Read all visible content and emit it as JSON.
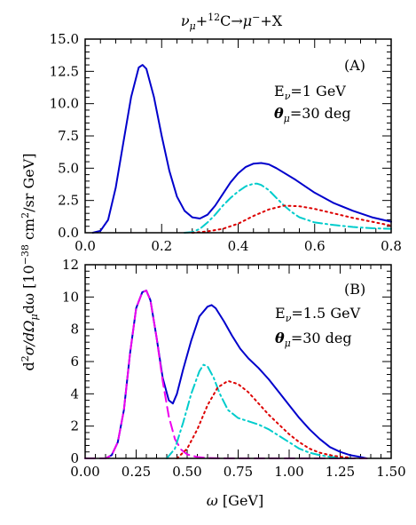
{
  "figure": {
    "title": "ν_μ + ¹²C → μ⁻ + X",
    "title_parts": {
      "nu": "ν",
      "mu_sub": "μ",
      "plus": "+",
      "mass": "12",
      "element": "C→",
      "mu": "μ",
      "minus": "−",
      "rest": "+X"
    },
    "ylabel": "d²σ/dΩ_μdω [10⁻³⁸ cm²/sr GeV]",
    "xlabel": "ω [GeV]",
    "ylabel_parts": {
      "d1": "d",
      "sup2": "2",
      "sigma": "σ/dΩ",
      "mu": "μ",
      "domega": "dω  [10",
      "exp": "−38",
      "unit": " cm",
      "sup2b": "2",
      "rest": "/sr GeV]"
    },
    "xlabel_parts": {
      "omega": "ω",
      "unit": " [GeV]"
    }
  },
  "chart_data": [
    {
      "type": "line",
      "panel_label": "(A)",
      "annotation": {
        "e_label": "E",
        "e_sub": "ν",
        "e_value": "=1 GeV",
        "theta_label": "θ",
        "theta_sub": "μ",
        "theta_value": "=30 deg"
      },
      "xlim": [
        0,
        0.8
      ],
      "ylim": [
        0,
        15
      ],
      "xticks": [
        0.0,
        0.2,
        0.4,
        0.6,
        0.8
      ],
      "xtick_labels": [
        "0.0",
        "0.2",
        "0.4",
        "0.6",
        "0.8"
      ],
      "yticks": [
        0.0,
        2.5,
        5.0,
        7.5,
        10.0,
        12.5,
        15.0
      ],
      "ytick_labels": [
        "0.0",
        "2.5",
        "5.0",
        "7.5",
        "10.0",
        "12.5",
        "15.0"
      ],
      "series": [
        {
          "style": "solid",
          "color": "#0000cc",
          "x": [
            0.02,
            0.04,
            0.06,
            0.08,
            0.1,
            0.12,
            0.14,
            0.15,
            0.16,
            0.18,
            0.2,
            0.22,
            0.24,
            0.26,
            0.28,
            0.3,
            0.32,
            0.34,
            0.36,
            0.38,
            0.4,
            0.42,
            0.44,
            0.46,
            0.48,
            0.5,
            0.55,
            0.6,
            0.65,
            0.7,
            0.75,
            0.8
          ],
          "y": [
            0.0,
            0.15,
            1.0,
            3.5,
            7.0,
            10.5,
            12.8,
            13.0,
            12.7,
            10.5,
            7.5,
            4.8,
            2.8,
            1.7,
            1.2,
            1.1,
            1.4,
            2.1,
            3.0,
            3.9,
            4.6,
            5.1,
            5.35,
            5.4,
            5.3,
            5.0,
            4.1,
            3.1,
            2.3,
            1.7,
            1.2,
            0.85
          ]
        },
        {
          "style": "dashdot",
          "color": "#00cccc",
          "x": [
            0.26,
            0.28,
            0.3,
            0.32,
            0.34,
            0.36,
            0.38,
            0.4,
            0.42,
            0.44,
            0.45,
            0.46,
            0.48,
            0.5,
            0.52,
            0.54,
            0.56,
            0.6,
            0.65,
            0.7,
            0.75,
            0.8
          ],
          "y": [
            0.0,
            0.05,
            0.3,
            0.8,
            1.4,
            2.1,
            2.7,
            3.2,
            3.6,
            3.8,
            3.8,
            3.7,
            3.3,
            2.7,
            2.1,
            1.6,
            1.2,
            0.8,
            0.6,
            0.45,
            0.35,
            0.3
          ]
        },
        {
          "style": "dotted",
          "color": "#dd0000",
          "x": [
            0.28,
            0.32,
            0.36,
            0.4,
            0.44,
            0.48,
            0.52,
            0.56,
            0.6,
            0.65,
            0.7,
            0.75,
            0.8
          ],
          "y": [
            0.0,
            0.1,
            0.3,
            0.7,
            1.3,
            1.8,
            2.1,
            2.05,
            1.85,
            1.5,
            1.15,
            0.85,
            0.55
          ]
        }
      ]
    },
    {
      "type": "line",
      "panel_label": "(B)",
      "annotation": {
        "e_label": "E",
        "e_sub": "ν",
        "e_value": "=1.5 GeV",
        "theta_label": "θ",
        "theta_sub": "μ",
        "theta_value": "=30 deg"
      },
      "xlim": [
        0,
        1.5
      ],
      "ylim": [
        0,
        12
      ],
      "xticks": [
        0.0,
        0.25,
        0.5,
        0.75,
        1.0,
        1.25,
        1.5
      ],
      "xtick_labels": [
        "0.00",
        "0.25",
        "0.50",
        "0.75",
        "1.00",
        "1.25",
        "1.50"
      ],
      "yticks": [
        0,
        2,
        4,
        6,
        8,
        10,
        12
      ],
      "ytick_labels": [
        "0",
        "2",
        "4",
        "6",
        "8",
        "10",
        "12"
      ],
      "series": [
        {
          "style": "solid",
          "color": "#0000cc",
          "x": [
            0.1,
            0.13,
            0.16,
            0.19,
            0.22,
            0.25,
            0.28,
            0.3,
            0.32,
            0.35,
            0.38,
            0.41,
            0.43,
            0.45,
            0.48,
            0.52,
            0.56,
            0.6,
            0.62,
            0.64,
            0.68,
            0.72,
            0.76,
            0.8,
            0.85,
            0.9,
            0.95,
            1.0,
            1.05,
            1.1,
            1.15,
            1.2,
            1.25,
            1.3,
            1.35,
            1.38
          ],
          "y": [
            0.0,
            0.2,
            1.0,
            3.0,
            6.5,
            9.3,
            10.3,
            10.4,
            9.8,
            7.5,
            5.0,
            3.6,
            3.4,
            4.0,
            5.5,
            7.3,
            8.8,
            9.4,
            9.5,
            9.3,
            8.5,
            7.6,
            6.8,
            6.2,
            5.6,
            4.9,
            4.1,
            3.3,
            2.5,
            1.8,
            1.2,
            0.7,
            0.4,
            0.2,
            0.08,
            0.0
          ]
        },
        {
          "style": "dashed",
          "color": "#ee00ee",
          "x": [
            0.0,
            0.05,
            0.1,
            0.13,
            0.16,
            0.19,
            0.22,
            0.25,
            0.28,
            0.3,
            0.32,
            0.35,
            0.38,
            0.41,
            0.44,
            0.47,
            0.5,
            0.55,
            0.6,
            0.7,
            0.8,
            1.0,
            1.2,
            1.38
          ],
          "y": [
            0.0,
            0.0,
            0.0,
            0.2,
            1.0,
            3.0,
            6.5,
            9.3,
            10.3,
            10.4,
            9.8,
            7.5,
            4.8,
            2.6,
            1.2,
            0.55,
            0.25,
            0.08,
            0.02,
            0.0,
            0.0,
            0.0,
            0.0,
            0.0
          ]
        },
        {
          "style": "dashdot",
          "color": "#00cccc",
          "x": [
            0.4,
            0.44,
            0.48,
            0.52,
            0.56,
            0.58,
            0.6,
            0.63,
            0.66,
            0.7,
            0.75,
            0.8,
            0.85,
            0.9,
            0.95,
            1.0,
            1.05,
            1.1,
            1.15,
            1.2,
            1.25,
            1.3
          ],
          "y": [
            0.0,
            0.6,
            2.2,
            4.0,
            5.4,
            5.8,
            5.7,
            5.0,
            4.0,
            3.0,
            2.5,
            2.3,
            2.1,
            1.8,
            1.4,
            1.0,
            0.6,
            0.35,
            0.2,
            0.1,
            0.05,
            0.0
          ]
        },
        {
          "style": "dotted",
          "color": "#dd0000",
          "x": [
            0.45,
            0.5,
            0.55,
            0.6,
            0.65,
            0.7,
            0.75,
            0.8,
            0.85,
            0.9,
            0.95,
            1.0,
            1.05,
            1.1,
            1.15,
            1.2,
            1.25,
            1.3
          ],
          "y": [
            0.0,
            0.6,
            1.8,
            3.3,
            4.4,
            4.8,
            4.6,
            4.1,
            3.4,
            2.7,
            2.1,
            1.5,
            1.0,
            0.6,
            0.35,
            0.2,
            0.1,
            0.05
          ]
        }
      ]
    }
  ]
}
